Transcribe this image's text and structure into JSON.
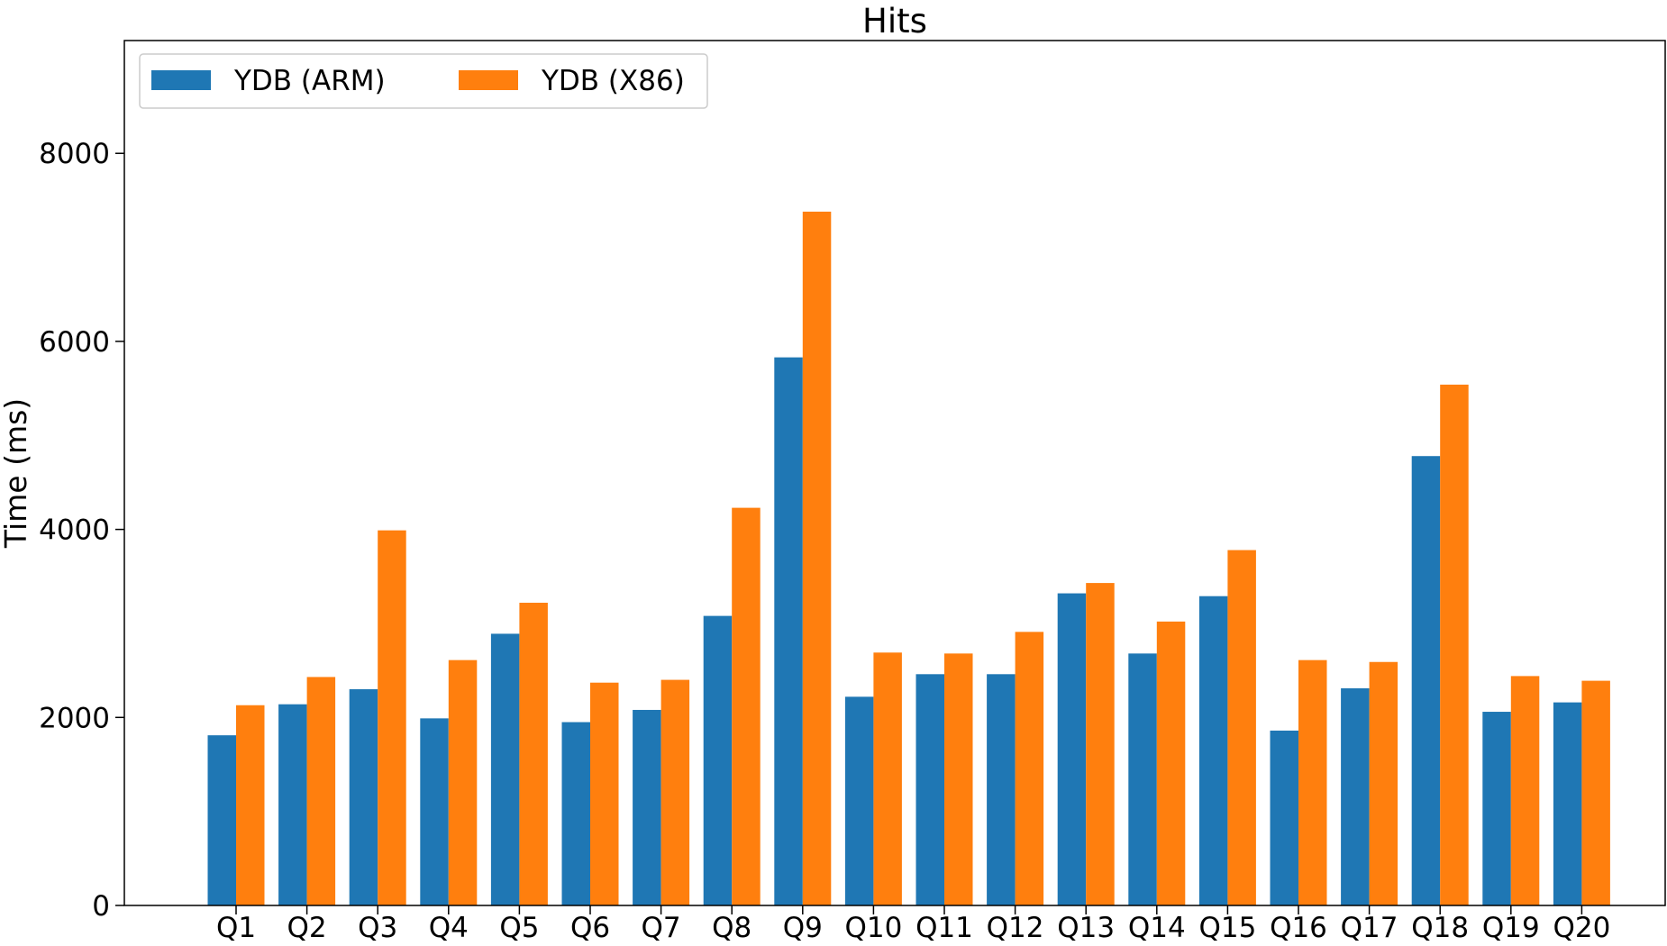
{
  "chart_data": {
    "type": "bar",
    "title": "Hits",
    "xlabel": "",
    "ylabel": "Time (ms)",
    "ylim": [
      0,
      9200
    ],
    "yticks": [
      0,
      2000,
      4000,
      6000,
      8000
    ],
    "grid": false,
    "legend_position": "top-left",
    "categories": [
      "Q1",
      "Q2",
      "Q3",
      "Q4",
      "Q5",
      "Q6",
      "Q7",
      "Q8",
      "Q9",
      "Q10",
      "Q11",
      "Q12",
      "Q13",
      "Q14",
      "Q15",
      "Q16",
      "Q17",
      "Q18",
      "Q19",
      "Q20"
    ],
    "series": [
      {
        "name": "YDB (ARM)",
        "color": "#1f77b4",
        "values": [
          1810,
          2140,
          2300,
          1990,
          2890,
          1950,
          2080,
          3080,
          5830,
          2220,
          2460,
          2460,
          3320,
          2680,
          3290,
          1860,
          2310,
          4780,
          2060,
          2160
        ]
      },
      {
        "name": "YDB (X86)",
        "color": "#ff7f0e",
        "values": [
          2130,
          2430,
          3990,
          2610,
          3220,
          2370,
          2400,
          4230,
          7380,
          2690,
          2680,
          2910,
          3430,
          3020,
          3780,
          2610,
          2590,
          5540,
          2440,
          2390
        ]
      }
    ]
  }
}
